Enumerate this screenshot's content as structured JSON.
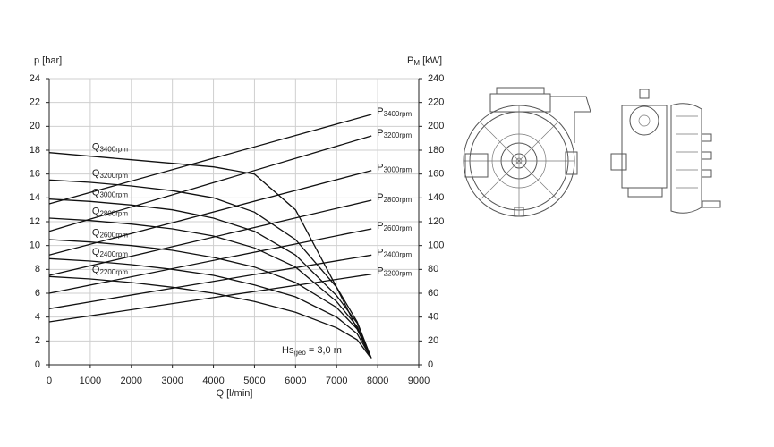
{
  "chart_data": {
    "type": "line",
    "y_label": "p [bar]",
    "y2_label": "PM [kW]",
    "x_label": "Q [l/min]",
    "annotation": "Hsgeo = 3,0 m",
    "x": [
      0,
      1000,
      2000,
      3000,
      4000,
      5000,
      6000,
      7000,
      7500,
      7850
    ],
    "xlim": [
      0,
      9000
    ],
    "xticks": [
      0,
      1000,
      2000,
      3000,
      4000,
      5000,
      6000,
      7000,
      8000,
      9000
    ],
    "ylim": [
      0,
      24
    ],
    "yticks": [
      0,
      2,
      4,
      6,
      8,
      10,
      12,
      14,
      16,
      18,
      20,
      22,
      24
    ],
    "y2lim": [
      0,
      240
    ],
    "y2ticks": [
      0,
      20,
      40,
      60,
      80,
      100,
      120,
      140,
      160,
      180,
      200,
      220,
      240
    ],
    "grid": true,
    "color": "#111111",
    "series": [
      {
        "name": "Q3400rpm",
        "values": [
          17.8,
          17.5,
          17.2,
          16.9,
          16.6,
          16.0,
          13.0,
          6.5,
          3.0,
          0.5
        ]
      },
      {
        "name": "Q3200rpm",
        "values": [
          15.5,
          15.3,
          15.0,
          14.6,
          14.0,
          12.8,
          10.5,
          6.5,
          3.6,
          0.5
        ]
      },
      {
        "name": "Q3000rpm",
        "values": [
          13.9,
          13.7,
          13.4,
          13.0,
          12.3,
          11.2,
          9.2,
          5.8,
          3.5,
          0.5
        ]
      },
      {
        "name": "Q2800rpm",
        "values": [
          12.3,
          12.1,
          11.8,
          11.4,
          10.8,
          9.8,
          8.2,
          5.3,
          3.2,
          0.5
        ]
      },
      {
        "name": "Q2600rpm",
        "values": [
          10.5,
          10.3,
          10.0,
          9.6,
          9.0,
          8.2,
          6.9,
          4.8,
          3.0,
          0.5
        ]
      },
      {
        "name": "Q2400rpm",
        "values": [
          8.9,
          8.7,
          8.4,
          8.0,
          7.5,
          6.7,
          5.7,
          4.0,
          2.6,
          0.5
        ]
      },
      {
        "name": "Q2200rpm",
        "values": [
          7.4,
          7.2,
          6.9,
          6.5,
          6.0,
          5.3,
          4.4,
          3.1,
          2.1,
          0.5
        ]
      },
      {
        "name": "P3400rpm",
        "axis": "y2",
        "x": [
          0,
          7850
        ],
        "values": [
          135,
          210
        ]
      },
      {
        "name": "P3200rpm",
        "axis": "y2",
        "x": [
          0,
          7850
        ],
        "values": [
          112,
          192
        ]
      },
      {
        "name": "P3000rpm",
        "axis": "y2",
        "x": [
          0,
          7850
        ],
        "values": [
          92,
          163
        ]
      },
      {
        "name": "P2800rpm",
        "axis": "y2",
        "x": [
          0,
          7850
        ],
        "values": [
          75,
          138
        ]
      },
      {
        "name": "P2600rpm",
        "axis": "y2",
        "x": [
          0,
          7850
        ],
        "values": [
          60,
          114
        ]
      },
      {
        "name": "P2400rpm",
        "axis": "y2",
        "x": [
          0,
          7850
        ],
        "values": [
          47,
          92
        ]
      },
      {
        "name": "P2200rpm",
        "axis": "y2",
        "x": [
          0,
          7850
        ],
        "values": [
          36,
          76
        ]
      }
    ]
  }
}
